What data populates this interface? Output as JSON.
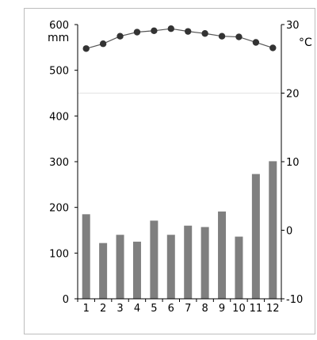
{
  "chart_data": {
    "type": "bar",
    "title": "",
    "xlabel": "",
    "categories": [
      "1",
      "2",
      "3",
      "4",
      "5",
      "6",
      "7",
      "8",
      "9",
      "10",
      "11",
      "12"
    ],
    "series": [
      {
        "type": "bar",
        "axis": "left",
        "values": [
          185,
          122,
          140,
          125,
          171,
          140,
          160,
          157,
          191,
          136,
          273,
          301
        ],
        "color": "#7f7f7f"
      },
      {
        "type": "line",
        "axis": "right",
        "values": [
          26.5,
          27.2,
          28.3,
          28.9,
          29.1,
          29.4,
          29.0,
          28.7,
          28.3,
          28.2,
          27.4,
          26.6
        ],
        "color": "#333333"
      }
    ],
    "y_left": {
      "unit": "mm",
      "min": 0,
      "max": 600,
      "ticks": [
        "0",
        "100",
        "200",
        "300",
        "400",
        "500",
        "600"
      ]
    },
    "y_right": {
      "unit": "°C",
      "min": -10,
      "max": 30,
      "ticks": [
        "-10",
        "0",
        "10",
        "20",
        "30"
      ]
    },
    "grid": "horizontal line at right-axis 20 only",
    "legend": "none"
  }
}
